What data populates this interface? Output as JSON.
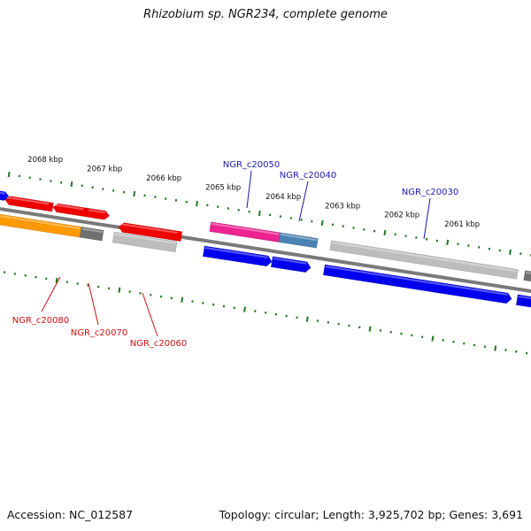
{
  "title": "Rhizobium sp. NGR234, complete genome",
  "footer": {
    "accession": "Accession: NC_012587",
    "summary": "Topology: circular; Length: 3,925,702 bp; Genes: 3,691"
  },
  "ruler": {
    "unit": "kbp",
    "ticks": [
      "2068 kbp",
      "2067 kbp",
      "2066 kbp",
      "2065 kbp",
      "2064 kbp",
      "2063 kbp",
      "2062 kbp",
      "2061 kbp"
    ]
  },
  "gene_labels": {
    "top": [
      "NGR_c20050",
      "NGR_c20040",
      "NGR_c20030"
    ],
    "bottom": [
      "NGR_c20080",
      "NGR_c20070",
      "NGR_c20060"
    ]
  },
  "colors": {
    "backbone": "#7a7a7a",
    "tick": "#1f7a1f",
    "label_top": "#1a1aaa",
    "label_bottom": "#cc1111",
    "red": "#ee0000",
    "orange": "#ff9900",
    "grey": "#bdbdbd",
    "dark_grey": "#707070",
    "blue": "#0000ee",
    "pink": "#ee2290",
    "steel": "#4a82b4"
  }
}
